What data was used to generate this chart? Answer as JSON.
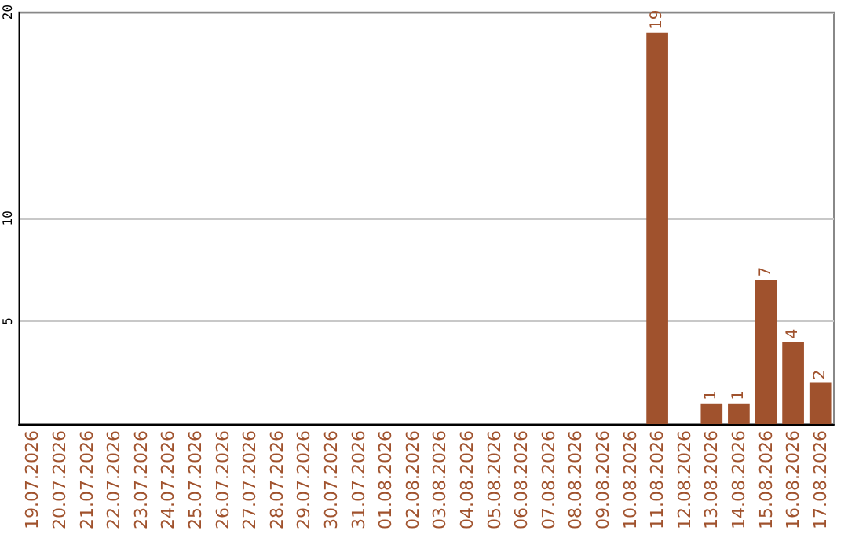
{
  "chart_data": {
    "type": "bar",
    "categories": [
      "19.07.2026",
      "20.07.2026",
      "21.07.2026",
      "22.07.2026",
      "23.07.2026",
      "24.07.2026",
      "25.07.2026",
      "26.07.2026",
      "27.07.2026",
      "28.07.2026",
      "29.07.2026",
      "30.07.2026",
      "31.07.2026",
      "01.08.2026",
      "02.08.2026",
      "03.08.2026",
      "04.08.2026",
      "05.08.2026",
      "06.08.2026",
      "07.08.2026",
      "08.08.2026",
      "09.08.2026",
      "10.08.2026",
      "11.08.2026",
      "12.08.2026",
      "13.08.2026",
      "14.08.2026",
      "15.08.2026",
      "16.08.2026",
      "17.08.2026"
    ],
    "values": [
      0,
      0,
      0,
      0,
      0,
      0,
      0,
      0,
      0,
      0,
      0,
      0,
      0,
      0,
      0,
      0,
      0,
      0,
      0,
      0,
      0,
      0,
      0,
      19,
      0,
      1,
      1,
      7,
      4,
      2
    ],
    "value_labels": [
      null,
      null,
      null,
      null,
      null,
      null,
      null,
      null,
      null,
      null,
      null,
      null,
      null,
      null,
      null,
      null,
      null,
      null,
      null,
      null,
      null,
      null,
      null,
      "19",
      null,
      "1",
      "1",
      "7",
      "4",
      "2"
    ],
    "color": "#a0522d",
    "ylim": [
      0,
      20
    ],
    "yticks": [
      5,
      10,
      20
    ],
    "grid": "y"
  }
}
